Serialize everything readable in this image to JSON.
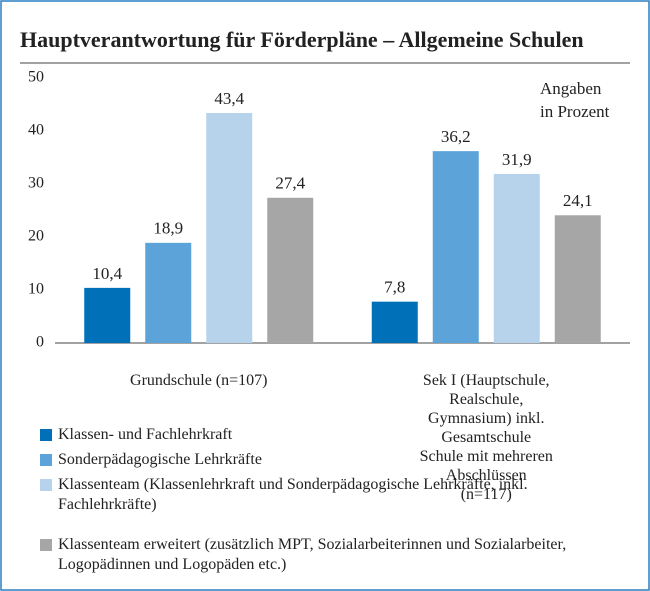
{
  "chart_data": {
    "type": "bar",
    "title": "Hauptverantwortung für Förderpläne – Allgemeine Schulen",
    "annotation": "Angaben\nin Prozent",
    "categories": [
      "Grundschule (n=107)",
      "Sek I (Hauptschule, Realschule,\nGymnasium) inkl. Gesamtschule\nSchule mit mehreren Abschlüssen\n(n=117)"
    ],
    "series": [
      {
        "name": "Klassen- und Fachlehrkraft",
        "color": "#0070b8",
        "values": [
          10.4,
          7.8
        ],
        "value_labels": [
          "10,4",
          "7,8"
        ]
      },
      {
        "name": "Sonderpädagogische Lehrkräfte",
        "color": "#5ba3d9",
        "values": [
          18.9,
          36.2
        ],
        "value_labels": [
          "18,9",
          "36,2"
        ]
      },
      {
        "name": "Klassenteam (Klassenlehrkraft und Sonderpädagogische Lehrkräfte, inkl. Fachlehrkräfte)",
        "color": "#b7d3ec",
        "values": [
          43.4,
          31.9
        ],
        "value_labels": [
          "43,4",
          "31,9"
        ]
      },
      {
        "name": "Klassenteam erweitert (zusätzlich MPT, Sozialarbeiterinnen und Sozialarbeiter, Logopädinnen und Logopäden etc.)",
        "color": "#a6a6a6",
        "values": [
          27.4,
          24.1
        ],
        "value_labels": [
          "27,4",
          "24,1"
        ]
      }
    ],
    "ylim": [
      0,
      50
    ],
    "yticks": [
      0,
      10,
      20,
      30,
      40,
      50
    ],
    "grid": false
  }
}
